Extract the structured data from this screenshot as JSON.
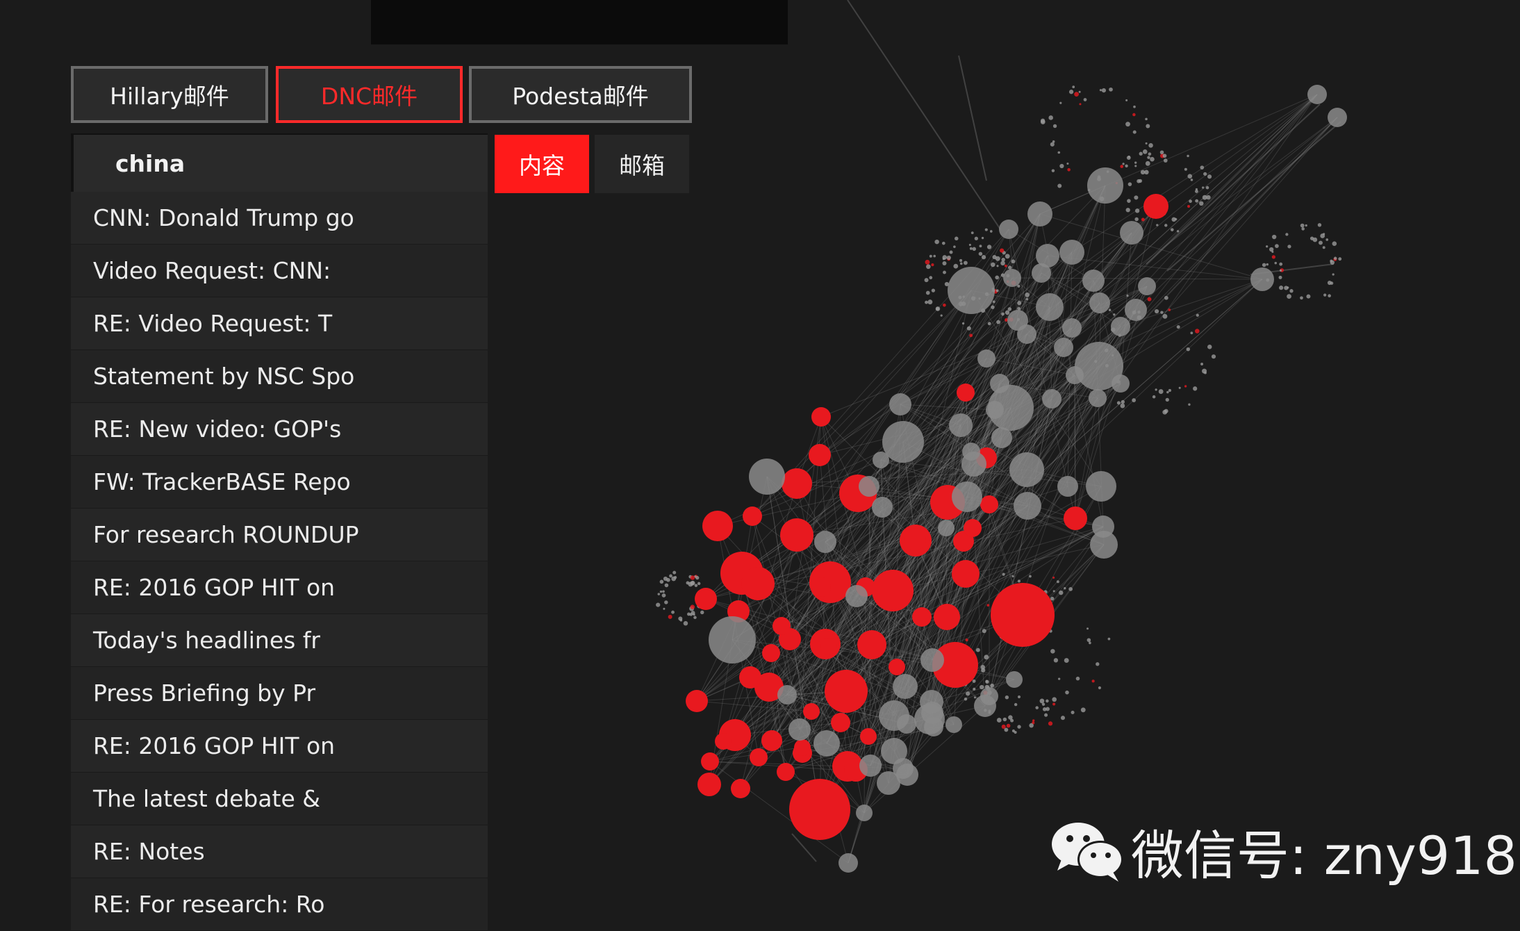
{
  "source_tabs": [
    {
      "label": "Hillary邮件",
      "active": false
    },
    {
      "label": "DNC邮件",
      "active": true
    },
    {
      "label": "Podesta邮件",
      "active": false
    }
  ],
  "search": {
    "value": "china"
  },
  "mode_buttons": [
    {
      "label": "内容",
      "active": true
    },
    {
      "label": "邮箱",
      "active": false
    }
  ],
  "results": [
    "CNN: Donald Trump go",
    "Video Request: CNN:",
    "RE: Video Request: T",
    "Statement by NSC Spo",
    "RE: New video: GOP's",
    "FW: TrackerBASE Repo",
    "For research ROUNDUP",
    "RE: 2016 GOP HIT on",
    "Today's headlines fr",
    "Press Briefing by Pr",
    "RE: 2016 GOP HIT on",
    "The latest debate &",
    "RE: Notes",
    "RE: For research: Ro"
  ],
  "colors": {
    "accent": "#ff1a1a",
    "highlight_node": "#e8191f",
    "normal_node": "#8a8a8a",
    "background": "#1b1b1b"
  },
  "watermark": {
    "text": "微信号: zny918",
    "icon": "wechat-icon"
  }
}
